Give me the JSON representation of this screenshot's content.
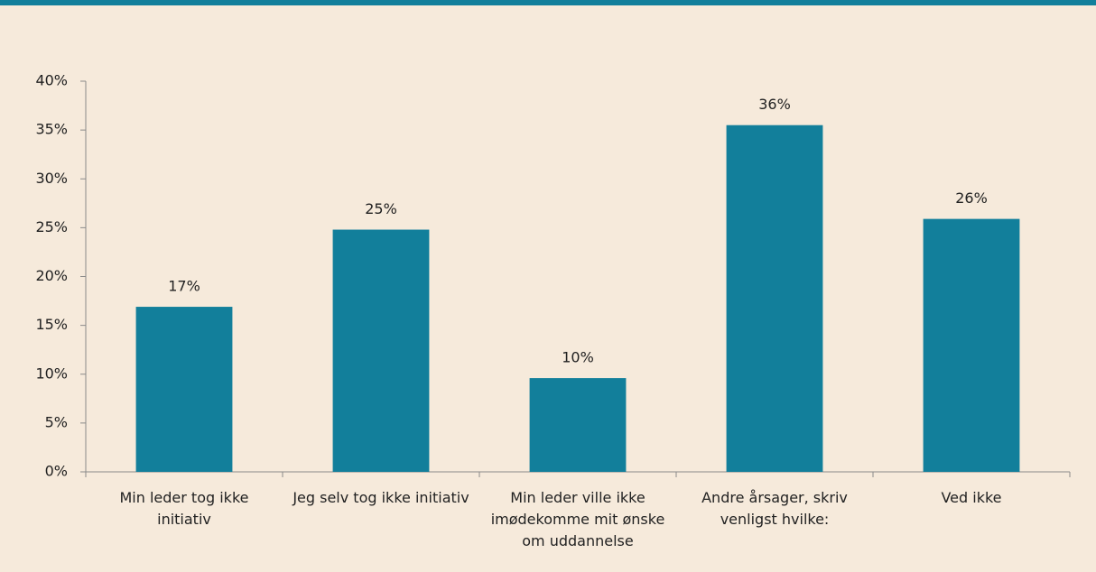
{
  "chart_data": {
    "type": "bar",
    "categories": [
      "Min leder tog ikke initiativ",
      "Jeg selv tog ikke initiativ",
      "Min leder ville ikke imødekomme mit ønske om uddannelse",
      "Andre årsager, skriv venligst hvilke:",
      "Ved ikke"
    ],
    "values": [
      16.9,
      24.8,
      9.6,
      35.5,
      25.9
    ],
    "value_labels": [
      "17%",
      "25%",
      "10%",
      "36%",
      "26%"
    ],
    "color": "#127f9b",
    "ylim": [
      0,
      40
    ],
    "yticks": [
      {
        "value": 0,
        "label": "0%"
      },
      {
        "value": 5,
        "label": "5%"
      },
      {
        "value": 10,
        "label": "10%"
      },
      {
        "value": 15,
        "label": "15%"
      },
      {
        "value": 20,
        "label": "20%"
      },
      {
        "value": 25,
        "label": "25%"
      },
      {
        "value": 30,
        "label": "30%"
      },
      {
        "value": 35,
        "label": "35%"
      },
      {
        "value": 40,
        "label": "40%"
      }
    ],
    "grid": false
  }
}
